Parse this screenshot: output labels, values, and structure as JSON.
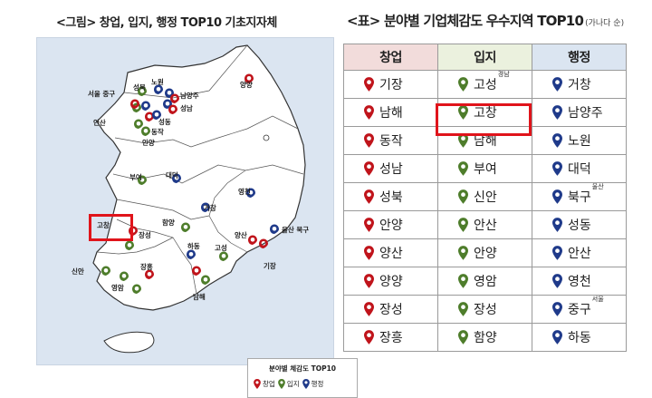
{
  "figure": {
    "caption": "<그림> 창업, 입지, 행정 TOP10 기초지자체",
    "legend": {
      "title": "분야별 체감도 TOP10",
      "items": [
        {
          "label": "창업",
          "color": "#c0141b",
          "icon": "pin-red-icon"
        },
        {
          "label": "입지",
          "color": "#4e7d2b",
          "icon": "pin-green-icon"
        },
        {
          "label": "행정",
          "color": "#1f3a8a",
          "icon": "pin-blue-icon"
        }
      ]
    },
    "labels": {
      "seoul": "서울 중구",
      "seongbuk": "성북",
      "nowon": "노원",
      "namyangju": "남양주",
      "seongnam": "성남",
      "ansan": "안산",
      "seongdong": "성동",
      "dongjak": "동작",
      "anyang": "안양",
      "yangyang": "양양",
      "buyeo": "부여",
      "daedeok": "대덕",
      "yeongcheon": "영천",
      "geochang": "거창",
      "gochang": "고창",
      "hamyang": "함양",
      "jangseong": "장성",
      "hadong": "하동",
      "goseong": "고성",
      "yangsan": "양산",
      "ulsan_bukgu": "울산 북구",
      "gijang": "기장",
      "sinan": "신안",
      "jangheung": "장흥",
      "yeongam": "영암",
      "namhae": "남해"
    }
  },
  "table": {
    "caption": "<표> 분야별 기업체감도 우수지역 TOP10",
    "caption_sub": "(가나다 순)",
    "headers": [
      {
        "label": "창업",
        "color": "#c0141b"
      },
      {
        "label": "입지",
        "color": "#4e7d2b"
      },
      {
        "label": "행정",
        "color": "#1f3a8a"
      }
    ],
    "rows": [
      [
        {
          "t": "기장"
        },
        {
          "t": "고성",
          "s": "경남"
        },
        {
          "t": "거창"
        }
      ],
      [
        {
          "t": "남해"
        },
        {
          "t": "고창"
        },
        {
          "t": "남양주"
        }
      ],
      [
        {
          "t": "동작"
        },
        {
          "t": "남해"
        },
        {
          "t": "노원"
        }
      ],
      [
        {
          "t": "성남"
        },
        {
          "t": "부여"
        },
        {
          "t": "대덕"
        }
      ],
      [
        {
          "t": "성북"
        },
        {
          "t": "신안"
        },
        {
          "t": "북구",
          "s": "울산"
        }
      ],
      [
        {
          "t": "안양"
        },
        {
          "t": "안산"
        },
        {
          "t": "성동"
        }
      ],
      [
        {
          "t": "양산"
        },
        {
          "t": "안양"
        },
        {
          "t": "안산"
        }
      ],
      [
        {
          "t": "양양"
        },
        {
          "t": "영암"
        },
        {
          "t": "영천"
        }
      ],
      [
        {
          "t": "장성"
        },
        {
          "t": "장성"
        },
        {
          "t": "중구",
          "s": "서울"
        }
      ],
      [
        {
          "t": "장흥"
        },
        {
          "t": "함양"
        },
        {
          "t": "하동"
        }
      ]
    ],
    "highlighted_cell": "고창"
  }
}
